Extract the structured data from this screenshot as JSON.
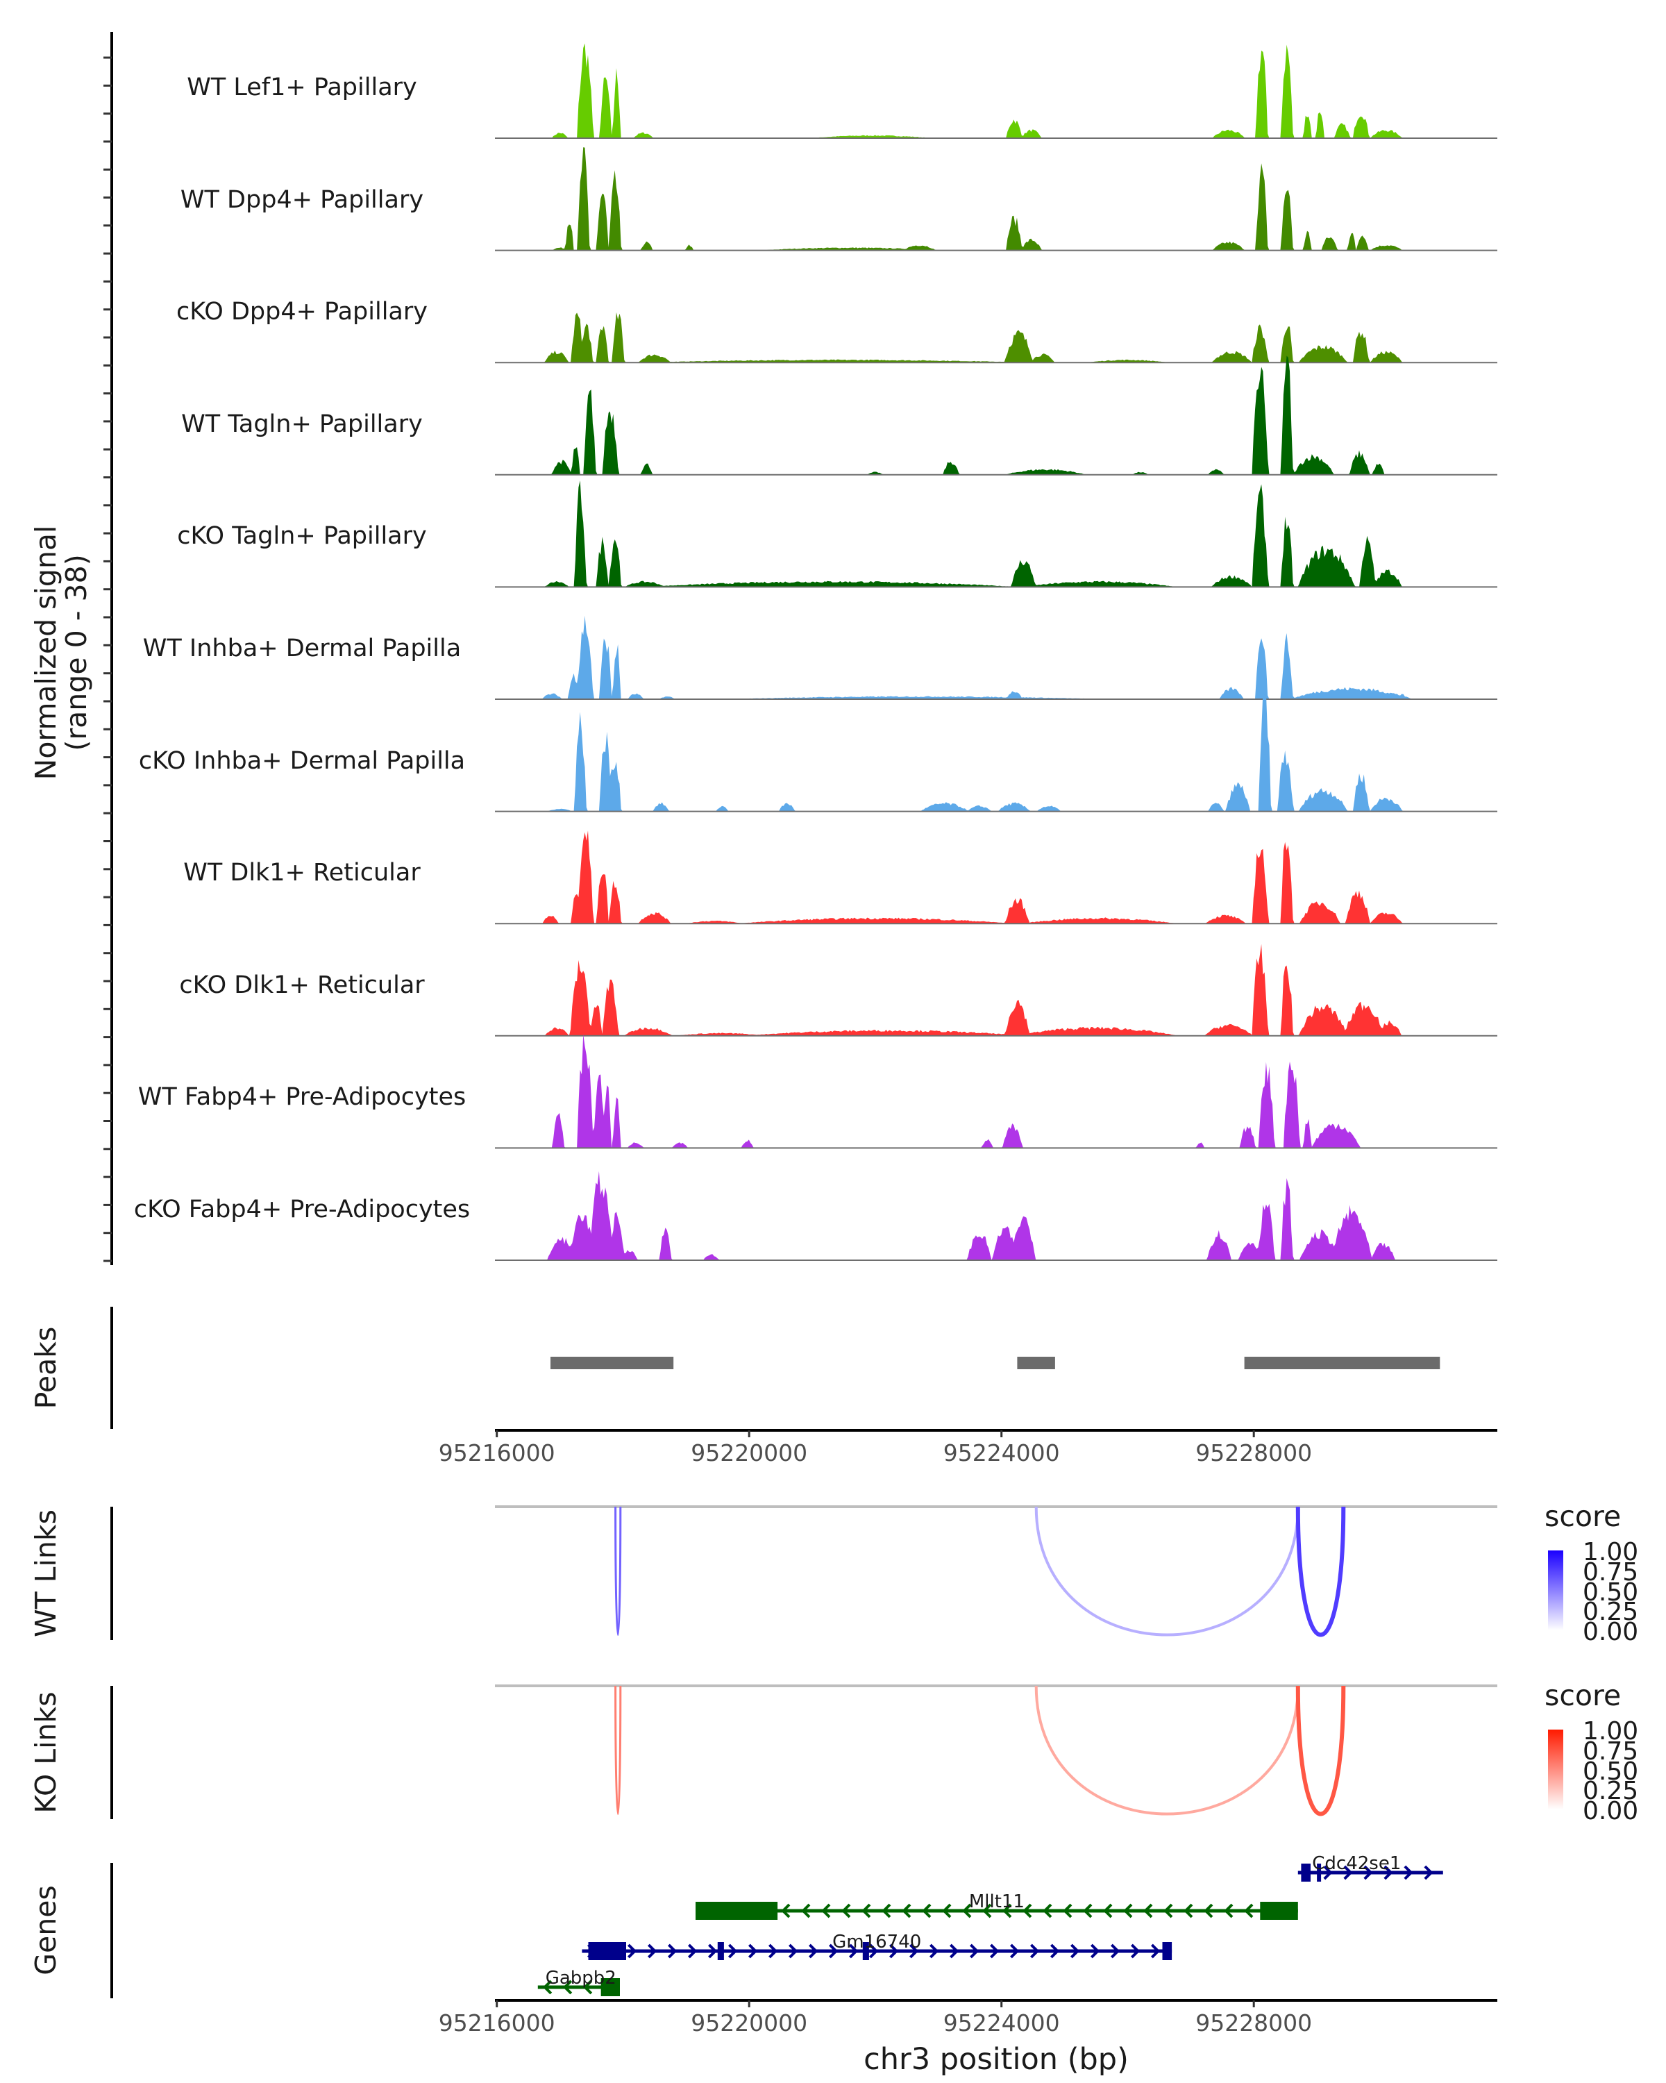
{
  "chart_data": {
    "type": "area",
    "title": "",
    "region": "chr3:95216000-95231800",
    "xlabel": "chr3 position (bp)",
    "ylabel": "Normalized signal\n(range 0 - 38)",
    "ylabel_lines": [
      "Normalized signal",
      "(range 0 - 38)"
    ],
    "ylim": [
      0,
      38
    ],
    "xlim": [
      95215970,
      95231860
    ],
    "x_ticks": [
      95216000,
      95220000,
      95224000,
      95228000
    ],
    "x_tick_labels": [
      "95216000",
      "95220000",
      "95224000",
      "95228000"
    ],
    "coverage_tracks": [
      {
        "name": "WT Lef1+ Papillary",
        "color": "#66CC00",
        "peaks": [
          [
            95216900,
            95217100,
            2
          ],
          [
            95217300,
            95217500,
            34
          ],
          [
            95217650,
            95217800,
            22
          ],
          [
            95217850,
            95217950,
            24
          ],
          [
            95218200,
            95218450,
            2
          ],
          [
            95221200,
            95222700,
            1
          ],
          [
            95224100,
            95224300,
            7
          ],
          [
            95224350,
            95224600,
            3
          ],
          [
            95227400,
            95227800,
            3
          ],
          [
            95228050,
            95228200,
            34
          ],
          [
            95228450,
            95228600,
            34
          ],
          [
            95228800,
            95228900,
            10
          ],
          [
            95229000,
            95229100,
            11
          ],
          [
            95229300,
            95229500,
            5
          ],
          [
            95229600,
            95229800,
            10
          ],
          [
            95229900,
            95230300,
            3
          ]
        ]
      },
      {
        "name": "WT Dpp4+ Papillary",
        "color": "#438A00",
        "peaks": [
          [
            95216900,
            95217100,
            1
          ],
          [
            95217100,
            95217200,
            12
          ],
          [
            95217300,
            95217450,
            35
          ],
          [
            95217600,
            95217750,
            22
          ],
          [
            95217800,
            95217950,
            26
          ],
          [
            95218300,
            95218450,
            3
          ],
          [
            95219000,
            95219100,
            2
          ],
          [
            95220500,
            95222700,
            1
          ],
          [
            95222500,
            95222900,
            2
          ],
          [
            95224100,
            95224300,
            12
          ],
          [
            95224350,
            95224600,
            4
          ],
          [
            95227400,
            95227800,
            3
          ],
          [
            95228050,
            95228200,
            30
          ],
          [
            95228450,
            95228600,
            24
          ],
          [
            95228800,
            95228900,
            7
          ],
          [
            95229100,
            95229300,
            5
          ],
          [
            95229500,
            95229600,
            7
          ],
          [
            95229650,
            95229800,
            6
          ],
          [
            95229900,
            95230300,
            2
          ]
        ]
      },
      {
        "name": "cKO Dpp4+ Papillary",
        "color": "#4E8F00",
        "peaks": [
          [
            95216800,
            95217100,
            4
          ],
          [
            95217200,
            95217350,
            18
          ],
          [
            95217350,
            95217500,
            14
          ],
          [
            95217600,
            95217750,
            14
          ],
          [
            95217850,
            95218000,
            18
          ],
          [
            95218300,
            95218700,
            3
          ],
          [
            95219000,
            95223800,
            1
          ],
          [
            95224100,
            95224450,
            11
          ],
          [
            95224500,
            95224800,
            3
          ],
          [
            95225500,
            95226500,
            1
          ],
          [
            95227400,
            95227900,
            4
          ],
          [
            95228000,
            95228200,
            13
          ],
          [
            95228450,
            95228600,
            15
          ],
          [
            95228800,
            95229400,
            6
          ],
          [
            95229600,
            95229800,
            12
          ],
          [
            95229900,
            95230300,
            4
          ]
        ]
      },
      {
        "name": "WT Tagln+ Papillary",
        "color": "#006400",
        "peaks": [
          [
            95216900,
            95217150,
            5
          ],
          [
            95217200,
            95217300,
            11
          ],
          [
            95217400,
            95217550,
            30
          ],
          [
            95217700,
            95217900,
            25
          ],
          [
            95218300,
            95218450,
            4
          ],
          [
            95221900,
            95222100,
            1
          ],
          [
            95223100,
            95223300,
            5
          ],
          [
            95224200,
            95225200,
            2
          ],
          [
            95226100,
            95226300,
            1
          ],
          [
            95227300,
            95227500,
            2
          ],
          [
            95228000,
            95228200,
            38
          ],
          [
            95228450,
            95228600,
            44
          ],
          [
            95228700,
            95229200,
            7
          ],
          [
            95229550,
            95229800,
            8
          ],
          [
            95229900,
            95230050,
            4
          ]
        ]
      },
      {
        "name": "cKO Tagln+ Papillary",
        "color": "#006400",
        "peaks": [
          [
            95216800,
            95217100,
            2
          ],
          [
            95217250,
            95217400,
            36
          ],
          [
            95217600,
            95217750,
            17
          ],
          [
            95217800,
            95217950,
            19
          ],
          [
            95218100,
            95218600,
            2
          ],
          [
            95219000,
            95223600,
            2
          ],
          [
            95224200,
            95224500,
            10
          ],
          [
            95224600,
            95226500,
            2
          ],
          [
            95227400,
            95227900,
            4
          ],
          [
            95228000,
            95228200,
            34
          ],
          [
            95228450,
            95228600,
            26
          ],
          [
            95228800,
            95229500,
            14
          ],
          [
            95229700,
            95229900,
            17
          ],
          [
            95229950,
            95230300,
            6
          ]
        ]
      },
      {
        "name": "WT Inhba+ Dermal Papilla",
        "color": "#5DA9E9",
        "peaks": [
          [
            95216750,
            95217000,
            2
          ],
          [
            95217150,
            95217300,
            9
          ],
          [
            95217300,
            95217500,
            29
          ],
          [
            95217650,
            95217800,
            23
          ],
          [
            95217850,
            95217950,
            20
          ],
          [
            95218100,
            95218300,
            2
          ],
          [
            95218600,
            95218800,
            1
          ],
          [
            95220300,
            95225000,
            1
          ],
          [
            95224100,
            95224300,
            3
          ],
          [
            95227500,
            95227800,
            4
          ],
          [
            95228050,
            95228200,
            27
          ],
          [
            95228450,
            95228600,
            22
          ],
          [
            95228800,
            95230300,
            4
          ],
          [
            95230300,
            95230400,
            2
          ]
        ]
      },
      {
        "name": "cKO Inhba+ Dermal Papilla",
        "color": "#5DA9E9",
        "peaks": [
          [
            95216850,
            95217150,
            1
          ],
          [
            95217250,
            95217400,
            34
          ],
          [
            95217650,
            95217800,
            28
          ],
          [
            95217800,
            95217950,
            20
          ],
          [
            95218500,
            95218700,
            3
          ],
          [
            95219500,
            95219650,
            2
          ],
          [
            95220500,
            95220700,
            3
          ],
          [
            95222800,
            95223400,
            3
          ],
          [
            95223500,
            95223800,
            2
          ],
          [
            95224000,
            95224400,
            3
          ],
          [
            95224600,
            95224900,
            2
          ],
          [
            95227300,
            95227500,
            3
          ],
          [
            95227600,
            95227900,
            10
          ],
          [
            95228100,
            95228250,
            44
          ],
          [
            95228400,
            95228600,
            21
          ],
          [
            95228800,
            95229400,
            8
          ],
          [
            95229600,
            95229800,
            14
          ],
          [
            95229900,
            95230300,
            5
          ]
        ]
      },
      {
        "name": "WT Dlk1+ Reticular",
        "color": "#FF3333",
        "peaks": [
          [
            95216750,
            95216950,
            3
          ],
          [
            95217200,
            95217300,
            13
          ],
          [
            95217300,
            95217500,
            36
          ],
          [
            95217600,
            95217750,
            22
          ],
          [
            95217800,
            95217950,
            16
          ],
          [
            95218300,
            95218700,
            4
          ],
          [
            95219100,
            95219800,
            1
          ],
          [
            95220300,
            95223700,
            2
          ],
          [
            95224100,
            95224400,
            9
          ],
          [
            95224600,
            95226500,
            2
          ],
          [
            95227300,
            95227800,
            3
          ],
          [
            95228000,
            95228200,
            30
          ],
          [
            95228450,
            95228600,
            35
          ],
          [
            95228800,
            95229300,
            8
          ],
          [
            95229500,
            95229800,
            12
          ],
          [
            95229900,
            95230300,
            4
          ]
        ]
      },
      {
        "name": "cKO Dlk1+ Reticular",
        "color": "#FF3333",
        "peaks": [
          [
            95216800,
            95217100,
            3
          ],
          [
            95217200,
            95217450,
            27
          ],
          [
            95217500,
            95217650,
            12
          ],
          [
            95217700,
            95217900,
            20
          ],
          [
            95218100,
            95218700,
            3
          ],
          [
            95219000,
            95220100,
            1
          ],
          [
            95220400,
            95223900,
            2
          ],
          [
            95224100,
            95224400,
            13
          ],
          [
            95224500,
            95226500,
            3
          ],
          [
            95227300,
            95227900,
            4
          ],
          [
            95228000,
            95228200,
            31
          ],
          [
            95228450,
            95228600,
            28
          ],
          [
            95228800,
            95229400,
            11
          ],
          [
            95229500,
            95230000,
            12
          ],
          [
            95230000,
            95230300,
            5
          ]
        ]
      },
      {
        "name": "WT Fabp4+ Pre-Adipocytes",
        "color": "#B035E8",
        "peaks": [
          [
            95216900,
            95217050,
            12
          ],
          [
            95217300,
            95217500,
            42
          ],
          [
            95217550,
            95217700,
            25
          ],
          [
            95217700,
            95217800,
            24
          ],
          [
            95217850,
            95217950,
            19
          ],
          [
            95218100,
            95218300,
            2
          ],
          [
            95218800,
            95219000,
            2
          ],
          [
            95219900,
            95220050,
            3
          ],
          [
            95223700,
            95223850,
            3
          ],
          [
            95224050,
            95224300,
            8
          ],
          [
            95227100,
            95227200,
            2
          ],
          [
            95227800,
            95228000,
            8
          ],
          [
            95228100,
            95228300,
            31
          ],
          [
            95228500,
            95228700,
            34
          ],
          [
            95228800,
            95228900,
            11
          ],
          [
            95229000,
            95229600,
            9
          ]
        ]
      },
      {
        "name": "cKO Fabp4+ Pre-Adipocytes",
        "color": "#B035E8",
        "peaks": [
          [
            95216850,
            95217200,
            8
          ],
          [
            95217200,
            95217500,
            18
          ],
          [
            95217500,
            95217800,
            30
          ],
          [
            95217800,
            95218000,
            16
          ],
          [
            95218000,
            95218200,
            4
          ],
          [
            95218600,
            95218750,
            12
          ],
          [
            95219300,
            95219500,
            2
          ],
          [
            95223500,
            95223800,
            10
          ],
          [
            95223900,
            95224200,
            12
          ],
          [
            95224200,
            95224500,
            16
          ],
          [
            95227300,
            95227600,
            10
          ],
          [
            95227800,
            95228100,
            7
          ],
          [
            95228100,
            95228300,
            22
          ],
          [
            95228450,
            95228600,
            29
          ],
          [
            95228800,
            95229300,
            10
          ],
          [
            95229300,
            95229800,
            18
          ],
          [
            95229900,
            95230200,
            6
          ]
        ]
      }
    ],
    "peaks_track": {
      "label": "Peaks",
      "color": "#6B6B6B",
      "ranges": [
        [
          95216850,
          95218800
        ],
        [
          95224250,
          95224850
        ],
        [
          95227850,
          95230950
        ]
      ]
    },
    "links_tracks": [
      {
        "label": "WT Links",
        "legend_title": "score",
        "low_color": "#FFFFFF",
        "high_color": "#1A00FF",
        "legend_ticks": [
          "1.00",
          "0.75",
          "0.50",
          "0.25",
          "0.00"
        ],
        "links": [
          {
            "start": 95217880,
            "end": 95217960,
            "score": 0.62
          },
          {
            "start": 95224550,
            "end": 95228700,
            "score": 0.22
          },
          {
            "start": 95228700,
            "end": 95229420,
            "score": 0.82
          }
        ]
      },
      {
        "label": "KO Links",
        "legend_title": "score",
        "low_color": "#FFFFFF",
        "high_color": "#FF1A00",
        "legend_ticks": [
          "1.00",
          "0.75",
          "0.50",
          "0.25",
          "0.00"
        ],
        "links": [
          {
            "start": 95217880,
            "end": 95217960,
            "score": 0.55
          },
          {
            "start": 95224550,
            "end": 95228700,
            "score": 0.3
          },
          {
            "start": 95228700,
            "end": 95229420,
            "score": 0.78
          }
        ]
      }
    ],
    "genes_track": {
      "label": "Genes",
      "genes": [
        {
          "name": "Cdc42se1",
          "strand": "+",
          "color": "#00008B",
          "row": 0,
          "start": 95228700,
          "end": 95231000,
          "exons": [
            [
              95228750,
              95228900
            ],
            [
              95229000,
              95229060
            ]
          ]
        },
        {
          "name": "Mllt11",
          "strand": "-",
          "color": "#006400",
          "row": 1,
          "start": 95219150,
          "end": 95228700,
          "exons": [
            [
              95219150,
              95220450
            ],
            [
              95228100,
              95228700
            ]
          ]
        },
        {
          "name": "Gm16740",
          "strand": "+",
          "color": "#00008B",
          "row": 2,
          "start": 95217350,
          "end": 95226700,
          "exons": [
            [
              95217450,
              95218050
            ],
            [
              95219500,
              95219600
            ],
            [
              95221800,
              95221900
            ],
            [
              95226550,
              95226700
            ]
          ]
        },
        {
          "name": "Gabpb2",
          "strand": "-",
          "color": "#006400",
          "row": 3,
          "start": 95216650,
          "end": 95217950,
          "exons": [
            [
              95217650,
              95217950
            ]
          ]
        }
      ]
    }
  }
}
